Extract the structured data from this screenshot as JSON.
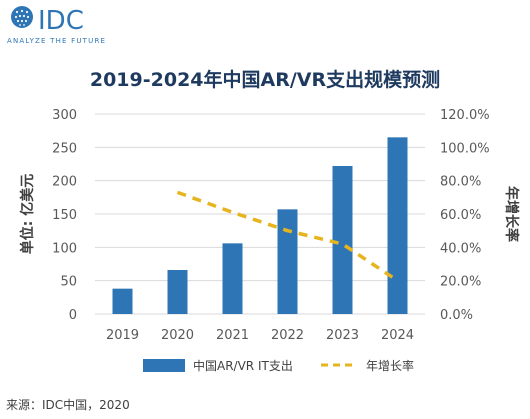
{
  "brand": {
    "name": "IDC",
    "tagline": "ANALYZE THE FUTURE"
  },
  "colors": {
    "bar": "#2E75B6",
    "line": "#E6B41E",
    "title": "#1F3A5F",
    "grid": "#D9D9D9",
    "text": "#595959"
  },
  "source": "来源：IDC中国，2020",
  "chart_data": {
    "type": "bar",
    "title": "2019-2024年中国AR/VR支出规模预测",
    "categories": [
      "2019",
      "2020",
      "2021",
      "2022",
      "2023",
      "2024"
    ],
    "ylabel": "单位: 亿美元",
    "y2label": "年增长率",
    "ylim": [
      0,
      300
    ],
    "yticks": [
      "0",
      "50",
      "100",
      "150",
      "200",
      "250",
      "300"
    ],
    "y2lim": [
      0,
      120
    ],
    "y2ticks": [
      "0.0%",
      "20.0%",
      "40.0%",
      "60.0%",
      "80.0%",
      "100.0%",
      "120.0%"
    ],
    "grid": true,
    "legend_position": "bottom",
    "series": [
      {
        "name": "中国AR/VR IT支出",
        "type": "bar",
        "axis": "left",
        "values": [
          38,
          66,
          106,
          157,
          222,
          265
        ]
      },
      {
        "name": "年增长率",
        "type": "line",
        "style": "dashed",
        "axis": "right",
        "values": [
          null,
          73,
          61,
          50,
          42,
          20
        ]
      }
    ]
  }
}
